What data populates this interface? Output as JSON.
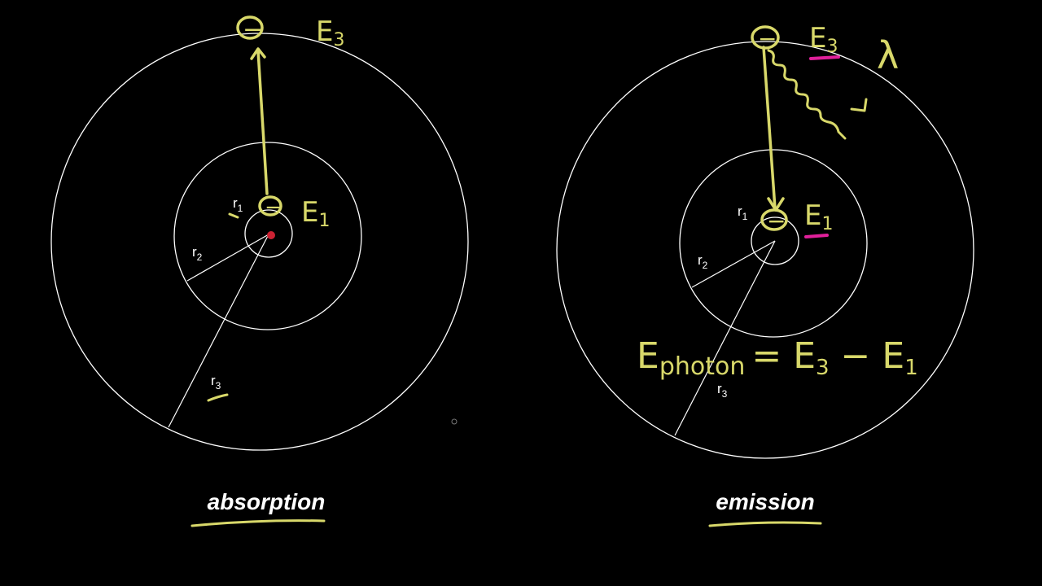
{
  "left": {
    "caption": "absorption",
    "r1": "r",
    "r1_sub": "1",
    "r2": "r",
    "r2_sub": "2",
    "r3": "r",
    "r3_sub": "3",
    "e3": "E",
    "e3_sub": "3",
    "e1": "E",
    "e1_sub": "1",
    "electron_sign": "−"
  },
  "right": {
    "caption": "emission",
    "r1": "r",
    "r1_sub": "1",
    "r2": "r",
    "r2_sub": "2",
    "r3": "r",
    "r3_sub": "3",
    "e3": "E",
    "e3_sub": "3",
    "e1": "E",
    "e1_sub": "1",
    "lambda": "λ",
    "equation_lhs": "E",
    "equation_lhs_sub": "photon",
    "equation_rhs": "= E",
    "equation_rhs_sub3": "3",
    "equation_minus": " − E",
    "equation_rhs_sub1": "1",
    "electron_sign": "−"
  },
  "colors": {
    "background": "#000000",
    "orbit": "#ffffff",
    "annotation_yellow": "#d8d86a",
    "highlight_magenta": "#e0209a",
    "nucleus_red": "#cc2233"
  },
  "icons": [
    "electron-icon",
    "photon-wave-icon",
    "nucleus-dot"
  ]
}
